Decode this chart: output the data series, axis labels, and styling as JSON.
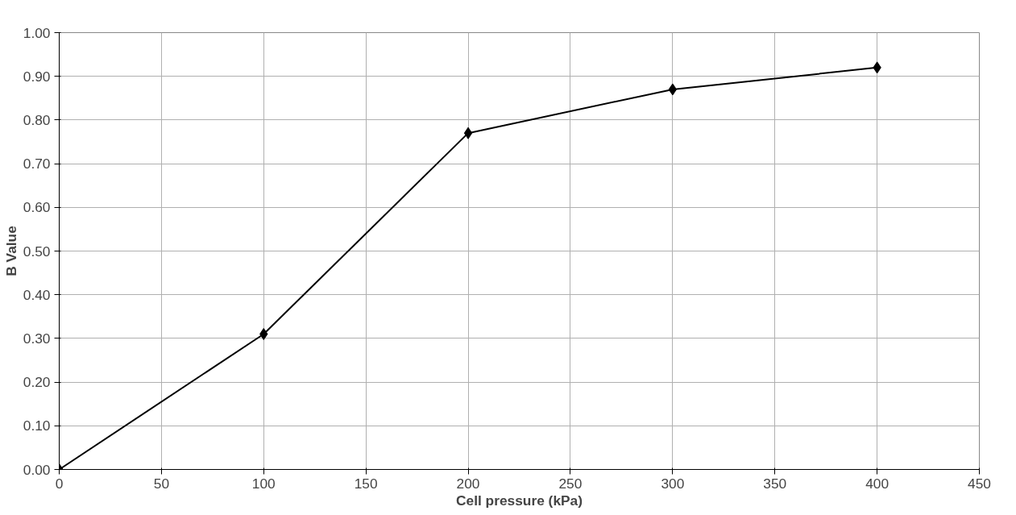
{
  "chart_data": {
    "type": "line",
    "xlabel": "Cell pressure (kPa)",
    "ylabel": "B Value",
    "x": [
      0,
      100,
      200,
      300,
      400
    ],
    "series": [
      {
        "color": "#000000",
        "values": [
          0,
          0.31,
          0.77,
          0.87,
          0.92
        ]
      }
    ],
    "xlim": [
      0,
      450
    ],
    "xticks": [
      0,
      50,
      100,
      150,
      200,
      250,
      300,
      350,
      400,
      450
    ],
    "ylim": [
      0,
      1
    ],
    "yticks": [
      {
        "value": 0,
        "label": "0.00"
      },
      {
        "value": 0.1,
        "label": "0.10"
      },
      {
        "value": 0.2,
        "label": "0.20"
      },
      {
        "value": 0.3,
        "label": "0.30"
      },
      {
        "value": 0.4,
        "label": "0.40"
      },
      {
        "value": 0.5,
        "label": "0.50"
      },
      {
        "value": 0.6,
        "label": "0.60"
      },
      {
        "value": 0.7,
        "label": "0.70"
      },
      {
        "value": 0.8,
        "label": "0.80"
      },
      {
        "value": 0.9,
        "label": "0.90"
      },
      {
        "value": 1.0,
        "label": "1.00"
      }
    ],
    "grid": true,
    "marker": "diamond",
    "line_style": "solid"
  }
}
